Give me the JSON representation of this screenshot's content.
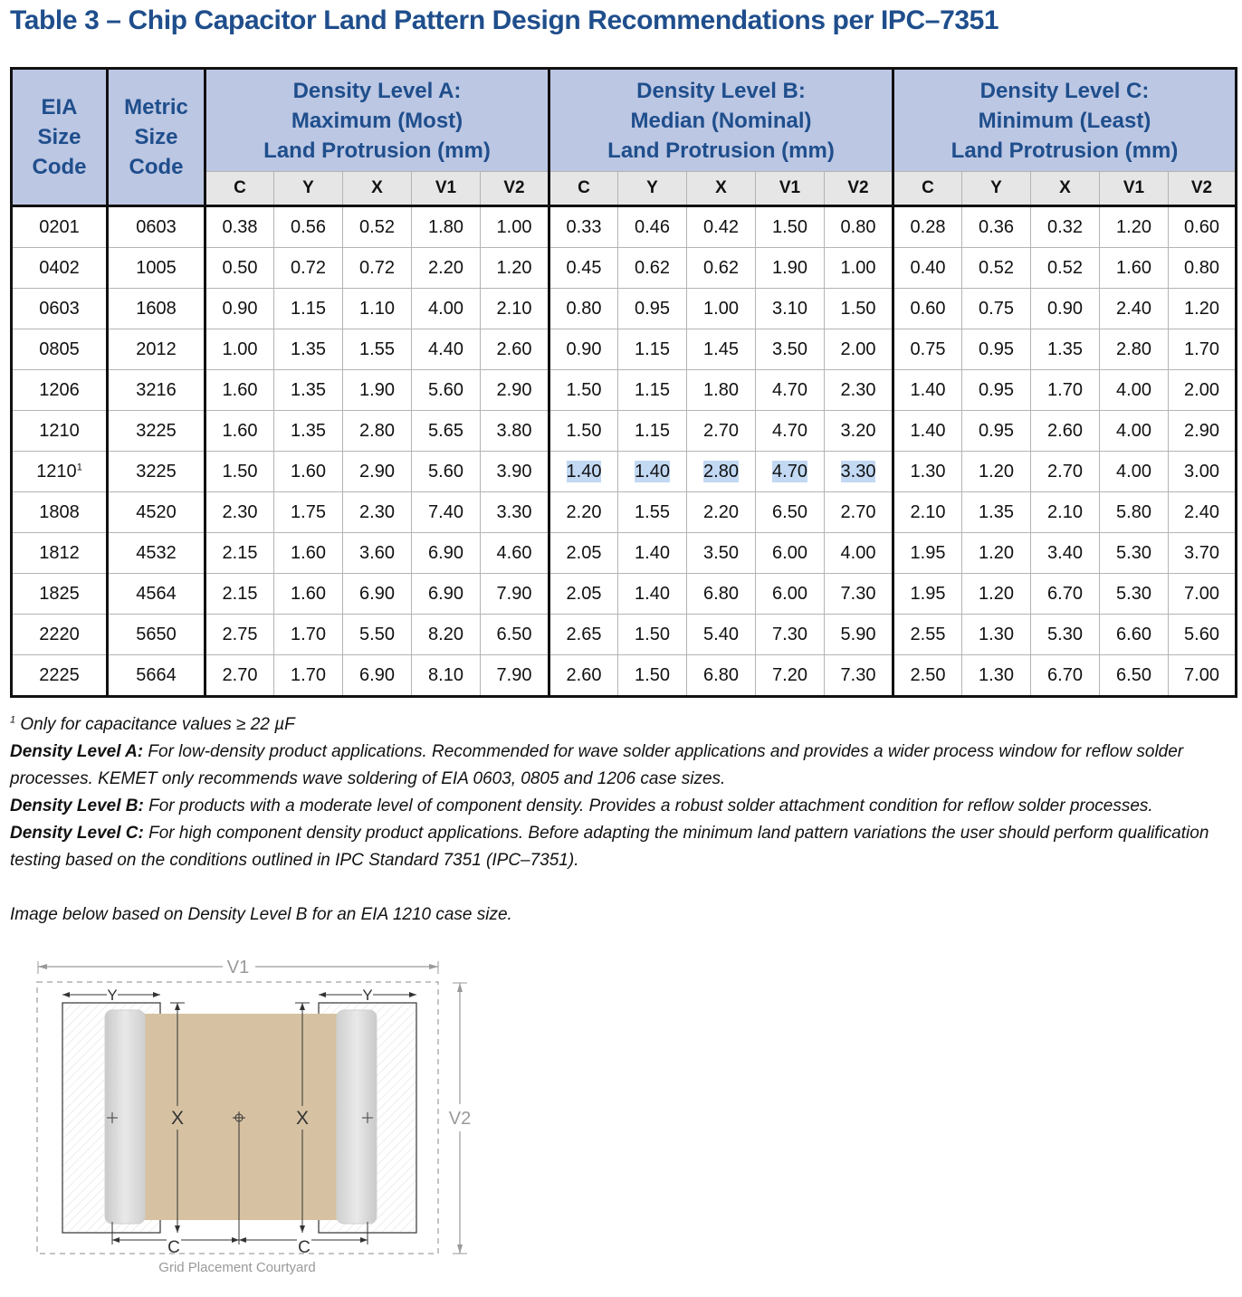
{
  "title": "Table 3 – Chip Capacitor Land Pattern Design Recommendations per IPC–7351",
  "table": {
    "eia_header": "EIA Size Code",
    "metric_header": "Metric Size Code",
    "groups": [
      {
        "line1": "Density Level A:",
        "line2": "Maximum (Most)",
        "line3": "Land Protrusion (mm)"
      },
      {
        "line1": "Density Level B:",
        "line2": "Median (Nominal)",
        "line3": "Land Protrusion (mm)"
      },
      {
        "line1": "Density Level C:",
        "line2": "Minimum (Least)",
        "line3": "Land Protrusion (mm)"
      }
    ],
    "subcolumns": [
      "C",
      "Y",
      "X",
      "V1",
      "V2"
    ],
    "rows": [
      {
        "eia": "0201",
        "sup": "",
        "metric": "0603",
        "vals": [
          "0.38",
          "0.56",
          "0.52",
          "1.80",
          "1.00",
          "0.33",
          "0.46",
          "0.42",
          "1.50",
          "0.80",
          "0.28",
          "0.36",
          "0.32",
          "1.20",
          "0.60"
        ]
      },
      {
        "eia": "0402",
        "sup": "",
        "metric": "1005",
        "vals": [
          "0.50",
          "0.72",
          "0.72",
          "2.20",
          "1.20",
          "0.45",
          "0.62",
          "0.62",
          "1.90",
          "1.00",
          "0.40",
          "0.52",
          "0.52",
          "1.60",
          "0.80"
        ]
      },
      {
        "eia": "0603",
        "sup": "",
        "metric": "1608",
        "vals": [
          "0.90",
          "1.15",
          "1.10",
          "4.00",
          "2.10",
          "0.80",
          "0.95",
          "1.00",
          "3.10",
          "1.50",
          "0.60",
          "0.75",
          "0.90",
          "2.40",
          "1.20"
        ]
      },
      {
        "eia": "0805",
        "sup": "",
        "metric": "2012",
        "vals": [
          "1.00",
          "1.35",
          "1.55",
          "4.40",
          "2.60",
          "0.90",
          "1.15",
          "1.45",
          "3.50",
          "2.00",
          "0.75",
          "0.95",
          "1.35",
          "2.80",
          "1.70"
        ]
      },
      {
        "eia": "1206",
        "sup": "",
        "metric": "3216",
        "vals": [
          "1.60",
          "1.35",
          "1.90",
          "5.60",
          "2.90",
          "1.50",
          "1.15",
          "1.80",
          "4.70",
          "2.30",
          "1.40",
          "0.95",
          "1.70",
          "4.00",
          "2.00"
        ]
      },
      {
        "eia": "1210",
        "sup": "",
        "metric": "3225",
        "vals": [
          "1.60",
          "1.35",
          "2.80",
          "5.65",
          "3.80",
          "1.50",
          "1.15",
          "2.70",
          "4.70",
          "3.20",
          "1.40",
          "0.95",
          "2.60",
          "4.00",
          "2.90"
        ]
      },
      {
        "eia": "1210",
        "sup": "1",
        "metric": "3225",
        "vals": [
          "1.50",
          "1.60",
          "2.90",
          "5.60",
          "3.90",
          "1.40",
          "1.40",
          "2.80",
          "4.70",
          "3.30",
          "1.30",
          "1.20",
          "2.70",
          "4.00",
          "3.00"
        ],
        "highlight_group": 1
      },
      {
        "eia": "1808",
        "sup": "",
        "metric": "4520",
        "vals": [
          "2.30",
          "1.75",
          "2.30",
          "7.40",
          "3.30",
          "2.20",
          "1.55",
          "2.20",
          "6.50",
          "2.70",
          "2.10",
          "1.35",
          "2.10",
          "5.80",
          "2.40"
        ]
      },
      {
        "eia": "1812",
        "sup": "",
        "metric": "4532",
        "vals": [
          "2.15",
          "1.60",
          "3.60",
          "6.90",
          "4.60",
          "2.05",
          "1.40",
          "3.50",
          "6.00",
          "4.00",
          "1.95",
          "1.20",
          "3.40",
          "5.30",
          "3.70"
        ]
      },
      {
        "eia": "1825",
        "sup": "",
        "metric": "4564",
        "vals": [
          "2.15",
          "1.60",
          "6.90",
          "6.90",
          "7.90",
          "2.05",
          "1.40",
          "6.80",
          "6.00",
          "7.30",
          "1.95",
          "1.20",
          "6.70",
          "5.30",
          "7.00"
        ]
      },
      {
        "eia": "2220",
        "sup": "",
        "metric": "5650",
        "vals": [
          "2.75",
          "1.70",
          "5.50",
          "8.20",
          "6.50",
          "2.65",
          "1.50",
          "5.40",
          "7.30",
          "5.90",
          "2.55",
          "1.30",
          "5.30",
          "6.60",
          "5.60"
        ]
      },
      {
        "eia": "2225",
        "sup": "",
        "metric": "5664",
        "vals": [
          "2.70",
          "1.70",
          "6.90",
          "8.10",
          "7.90",
          "2.60",
          "1.50",
          "6.80",
          "7.20",
          "7.30",
          "2.50",
          "1.30",
          "6.70",
          "6.50",
          "7.00"
        ]
      }
    ]
  },
  "notes": {
    "footnote_mark": "1",
    "footnote": "Only for capacitance values ≥ 22 µF",
    "a_label": "Density Level A:",
    "a_text": "For low-density product applications. Recommended for wave solder applications and provides a wider process window for reflow solder processes. KEMET only recommends wave soldering of EIA 0603, 0805 and 1206 case sizes.",
    "b_label": "Density Level B:",
    "b_text": "For products with a moderate level of component density. Provides a robust solder attachment condition for reflow solder processes.",
    "c_label": "Density Level C:",
    "c_text": "For high component density product applications. Before adapting the minimum land pattern variations the user should perform qualification testing based on the conditions outlined in IPC Standard 7351 (IPC–7351).",
    "image_note": "Image below based on Density Level B for an EIA 1210 case size."
  },
  "diagram": {
    "v1": "V1",
    "v2": "V2",
    "y_left": "Y",
    "y_right": "Y",
    "x_left": "X",
    "x_right": "X",
    "c_left": "C",
    "c_right": "C",
    "caption": "Grid Placement Courtyard",
    "body_color": "#d6c2a2",
    "terminal_color": "#d9d9d9",
    "line_color": "#8a8a8a"
  }
}
